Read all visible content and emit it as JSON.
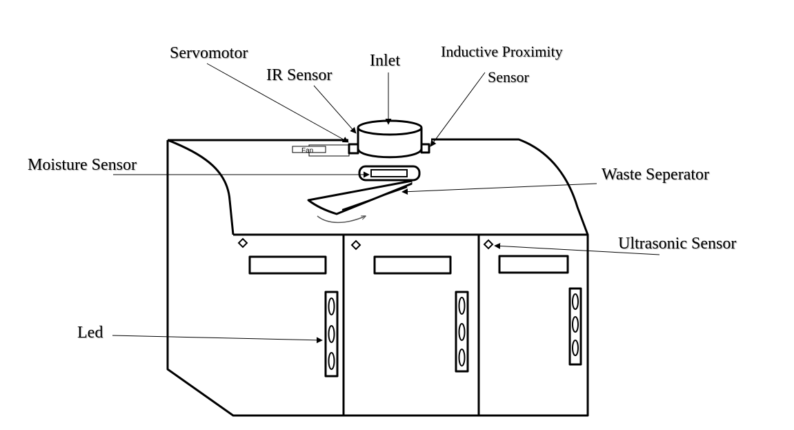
{
  "labels": {
    "servomotor": "Servomotor",
    "ir_sensor": "IR Sensor",
    "inlet": "Inlet",
    "inductive_line1": "Inductive Proximity",
    "inductive_line2": "Sensor",
    "moisture_sensor": "Moisture Sensor",
    "waste_separator": "Waste Seperator",
    "ultrasonic_sensor": "Ultrasonic Sensor",
    "led": "Led",
    "fan": "Fan"
  },
  "colors": {
    "line": "#000000",
    "background": "#ffffff"
  }
}
